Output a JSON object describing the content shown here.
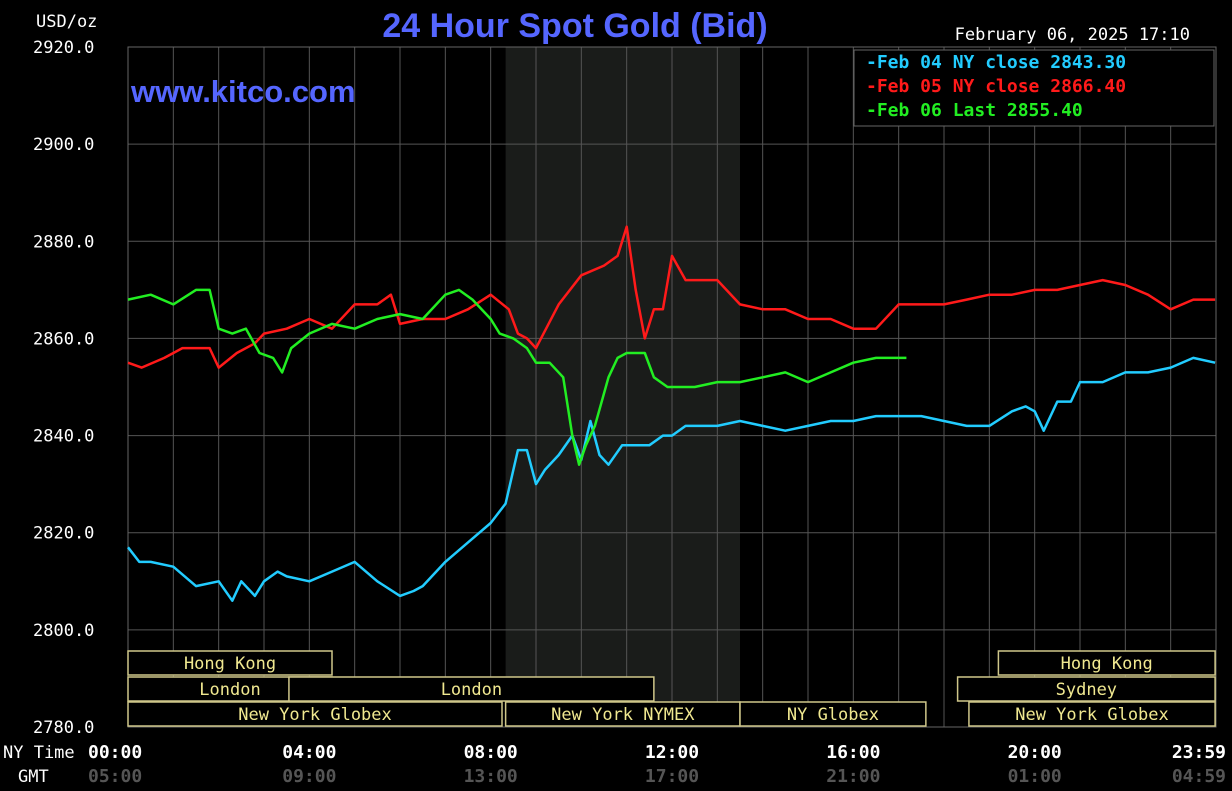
{
  "chart_data": {
    "type": "line",
    "title": "24 Hour Spot Gold (Bid)",
    "units_label": "USD/oz",
    "watermark": "www.kitco.com",
    "timestamp": "February 06, 2025 17:10",
    "ylim": [
      2780,
      2920
    ],
    "y_ticks": [
      "2920.0",
      "2900.0",
      "2880.0",
      "2860.0",
      "2840.0",
      "2820.0",
      "2800.0",
      "2780.0"
    ],
    "x_row_label_ny": "NY Time",
    "x_row_label_gmt": "GMT",
    "x_ticks_ny": [
      "00:00",
      "04:00",
      "08:00",
      "12:00",
      "16:00",
      "20:00",
      "23:59"
    ],
    "x_ticks_gmt": [
      "05:00",
      "09:00",
      "13:00",
      "17:00",
      "21:00",
      "01:00",
      "04:59"
    ],
    "x_hours": [
      0,
      4,
      8,
      12,
      16,
      20,
      24
    ],
    "shaded_period": [
      8.33,
      13.5
    ],
    "grid": true,
    "legend_position": "top-right",
    "legend": [
      {
        "text": "Feb 04 NY close 2843.30",
        "color": "#22ccff"
      },
      {
        "text": "Feb 05 NY close 2866.40",
        "color": "#ff1a1a"
      },
      {
        "text": "Feb 06 Last 2855.40",
        "color": "#22ee22"
      }
    ],
    "series": [
      {
        "name": "Feb 04",
        "color": "#22ccff",
        "x": [
          0,
          0.25,
          0.5,
          1.0,
          1.5,
          2.0,
          2.3,
          2.5,
          2.8,
          3.0,
          3.3,
          3.5,
          4.0,
          4.5,
          5.0,
          5.5,
          6.0,
          6.3,
          6.5,
          7.0,
          7.5,
          8.0,
          8.33,
          8.6,
          8.8,
          9.0,
          9.2,
          9.5,
          9.8,
          10.0,
          10.2,
          10.4,
          10.6,
          10.9,
          11.2,
          11.5,
          11.8,
          12.0,
          12.3,
          12.6,
          13.0,
          13.5,
          14.0,
          14.5,
          15.0,
          15.5,
          16.0,
          16.5,
          17.0,
          17.5,
          18.0,
          18.5,
          19.0,
          19.5,
          19.8,
          20.0,
          20.2,
          20.5,
          20.8,
          21.0,
          21.5,
          22.0,
          22.5,
          23.0,
          23.5,
          23.98
        ],
        "y": [
          2817,
          2814,
          2814,
          2813,
          2809,
          2810,
          2806,
          2810,
          2807,
          2810,
          2812,
          2811,
          2810,
          2812,
          2814,
          2810,
          2807,
          2808,
          2809,
          2814,
          2818,
          2822,
          2826,
          2837,
          2837,
          2830,
          2833,
          2836,
          2840,
          2835,
          2843,
          2836,
          2834,
          2838,
          2838,
          2838,
          2840,
          2840,
          2842,
          2842,
          2842,
          2843,
          2842,
          2841,
          2842,
          2843,
          2843,
          2844,
          2844,
          2844,
          2843,
          2842,
          2842,
          2845,
          2846,
          2845,
          2841,
          2847,
          2847,
          2851,
          2851,
          2853,
          2853,
          2854,
          2856,
          2855
        ]
      },
      {
        "name": "Feb 05",
        "color": "#ff1a1a",
        "x": [
          0,
          0.3,
          0.8,
          1.2,
          1.8,
          2.0,
          2.4,
          2.8,
          3.0,
          3.5,
          4.0,
          4.5,
          5.0,
          5.5,
          5.8,
          6.0,
          6.5,
          7.0,
          7.5,
          8.0,
          8.4,
          8.6,
          8.8,
          9.0,
          9.5,
          10.0,
          10.5,
          10.8,
          11.0,
          11.2,
          11.4,
          11.6,
          11.8,
          12.0,
          12.3,
          12.6,
          13.0,
          13.5,
          14.0,
          14.5,
          15.0,
          15.5,
          16.0,
          16.5,
          17.0,
          17.5,
          18.0,
          18.5,
          19.0,
          19.5,
          20.0,
          20.5,
          21.0,
          21.5,
          22.0,
          22.5,
          23.0,
          23.5,
          23.98
        ],
        "y": [
          2855,
          2854,
          2856,
          2858,
          2858,
          2854,
          2857,
          2859,
          2861,
          2862,
          2864,
          2862,
          2867,
          2867,
          2869,
          2863,
          2864,
          2864,
          2866,
          2869,
          2866,
          2861,
          2860,
          2858,
          2867,
          2873,
          2875,
          2877,
          2883,
          2870,
          2860,
          2866,
          2866,
          2877,
          2872,
          2872,
          2872,
          2867,
          2866,
          2866,
          2864,
          2864,
          2862,
          2862,
          2867,
          2867,
          2867,
          2868,
          2869,
          2869,
          2870,
          2870,
          2871,
          2872,
          2871,
          2869,
          2866,
          2868,
          2868
        ]
      },
      {
        "name": "Feb 06",
        "color": "#22ee22",
        "x": [
          0,
          0.5,
          1.0,
          1.5,
          1.8,
          2.0,
          2.3,
          2.6,
          2.9,
          3.2,
          3.4,
          3.6,
          4.0,
          4.5,
          5.0,
          5.5,
          6.0,
          6.5,
          7.0,
          7.3,
          7.6,
          8.0,
          8.2,
          8.5,
          8.8,
          9.0,
          9.3,
          9.6,
          9.8,
          9.95,
          10.1,
          10.3,
          10.6,
          10.8,
          11.0,
          11.4,
          11.6,
          11.9,
          12.2,
          12.5,
          13.0,
          13.5,
          14.0,
          14.5,
          15.0,
          15.5,
          16.0,
          16.5,
          17.0,
          17.17
        ],
        "y": [
          2868,
          2869,
          2867,
          2870,
          2870,
          2862,
          2861,
          2862,
          2857,
          2856,
          2853,
          2858,
          2861,
          2863,
          2862,
          2864,
          2865,
          2864,
          2869,
          2870,
          2868,
          2864,
          2861,
          2860,
          2858,
          2855,
          2855,
          2852,
          2840,
          2834,
          2838,
          2842,
          2852,
          2856,
          2857,
          2857,
          2852,
          2850,
          2850,
          2850,
          2851,
          2851,
          2852,
          2853,
          2851,
          2853,
          2855,
          2856,
          2856,
          2856
        ]
      }
    ],
    "sessions": [
      {
        "label": "Hong Kong",
        "row": 0,
        "start": 0,
        "end": 4.5
      },
      {
        "label": "Hong Kong",
        "row": 0,
        "start": 19.2,
        "end": 23.98
      },
      {
        "label": "London",
        "row": 1,
        "start": 0,
        "end": 4.5
      },
      {
        "label": "London",
        "row": 1,
        "start": 3.55,
        "end": 11.6
      },
      {
        "label": "Sydney",
        "row": 1,
        "start": 18.3,
        "end": 23.98
      },
      {
        "label": "New York Globex",
        "row": 2,
        "start": 0,
        "end": 8.25
      },
      {
        "label": "New York NYMEX",
        "row": 2,
        "start": 8.33,
        "end": 13.5
      },
      {
        "label": "NY Globex",
        "row": 2,
        "start": 13.5,
        "end": 17.6
      },
      {
        "label": "New York Globex",
        "row": 2,
        "start": 18.55,
        "end": 23.98
      }
    ]
  }
}
